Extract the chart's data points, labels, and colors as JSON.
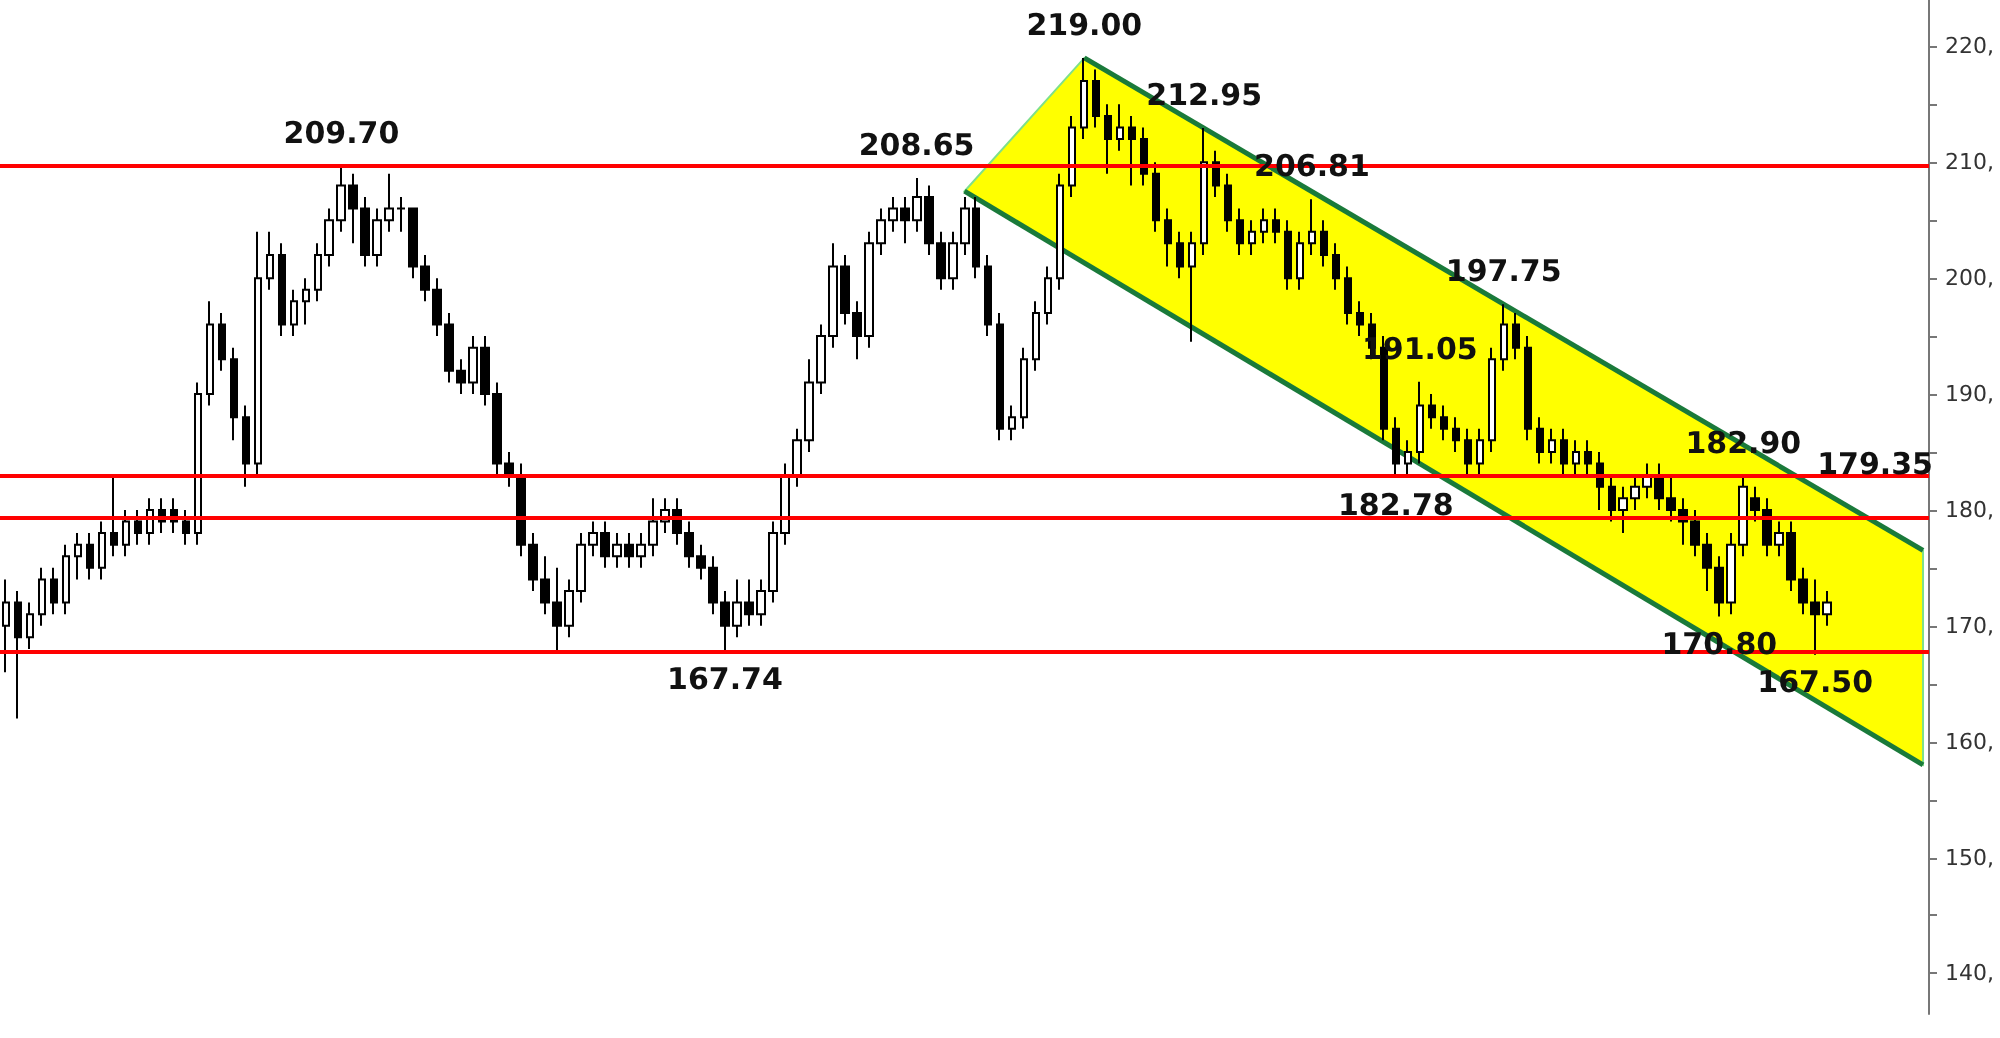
{
  "chart_data": {
    "type": "candlestick",
    "categories": [
      null,
      null,
      null,
      null,
      null,
      null,
      null,
      null,
      null,
      null,
      null,
      null,
      null,
      null,
      null,
      null,
      null,
      null,
      null,
      null,
      null,
      null,
      null,
      null,
      null,
      null,
      null,
      null,
      null,
      null,
      null,
      null,
      null,
      null,
      null,
      null,
      null,
      null,
      null,
      null,
      null,
      null,
      null,
      null,
      null,
      null,
      null,
      null,
      null,
      null,
      null,
      null,
      null,
      null,
      null,
      null,
      null,
      null,
      null,
      null,
      null,
      null,
      null,
      null,
      null,
      null,
      null,
      null,
      null,
      null,
      null,
      null,
      null,
      null,
      null,
      null,
      null,
      null,
      null,
      null,
      null,
      null,
      null,
      null,
      null,
      null,
      null,
      null,
      null,
      null,
      null,
      null,
      null,
      null,
      null,
      null,
      null,
      null,
      null,
      null,
      null,
      null,
      null,
      null,
      null,
      null,
      null,
      null,
      null,
      null,
      null,
      null,
      null,
      null,
      null,
      null,
      null,
      null,
      null,
      null,
      null,
      null,
      null,
      null,
      null,
      null,
      null,
      null,
      null,
      null,
      null,
      null,
      null,
      null,
      null,
      null,
      null,
      null,
      null,
      null,
      null,
      null,
      null,
      null,
      null,
      null,
      null,
      null,
      null,
      null,
      null,
      null,
      null,
      null,
      null,
      null,
      null,
      null,
      null,
      null,
      null
    ],
    "series": [
      {
        "color": "#000000",
        "ohlc": [
          [
            170,
            174,
            166,
            172
          ],
          [
            172,
            173,
            162,
            169
          ],
          [
            169,
            172,
            168,
            171
          ],
          [
            171,
            175,
            170,
            174
          ],
          [
            174,
            175,
            171,
            172
          ],
          [
            172,
            177,
            171,
            176
          ],
          [
            176,
            178,
            174,
            177
          ],
          [
            177,
            178,
            174,
            175
          ],
          [
            175,
            179,
            174,
            178
          ],
          [
            178,
            183,
            176,
            177
          ],
          [
            177,
            180,
            176,
            179
          ],
          [
            179,
            180,
            177,
            178
          ],
          [
            178,
            181,
            177,
            180
          ],
          [
            180,
            181,
            178,
            179
          ],
          [
            180,
            181,
            178,
            179
          ],
          [
            179,
            180,
            177,
            178
          ],
          [
            178,
            191,
            177,
            190
          ],
          [
            190,
            198,
            189,
            196
          ],
          [
            196,
            197,
            192,
            193
          ],
          [
            193,
            194,
            186,
            188
          ],
          [
            188,
            189,
            182,
            184
          ],
          [
            184,
            204,
            183,
            200
          ],
          [
            200,
            204,
            199,
            202
          ],
          [
            202,
            203,
            195,
            196
          ],
          [
            196,
            199,
            195,
            198
          ],
          [
            198,
            200,
            196,
            199
          ],
          [
            199,
            203,
            198,
            202
          ],
          [
            202,
            206,
            201,
            205
          ],
          [
            205,
            209.7,
            204,
            208
          ],
          [
            208,
            209,
            203,
            206
          ],
          [
            206,
            207,
            201,
            202
          ],
          [
            202,
            206,
            201,
            205
          ],
          [
            205,
            209,
            204,
            206
          ],
          [
            206,
            207,
            204,
            206
          ],
          [
            206,
            206,
            200,
            201
          ],
          [
            201,
            202,
            198,
            199
          ],
          [
            199,
            200,
            195,
            196
          ],
          [
            196,
            197,
            191,
            192
          ],
          [
            192,
            193,
            190,
            191
          ],
          [
            191,
            195,
            190,
            194
          ],
          [
            194,
            195,
            189,
            190
          ],
          [
            190,
            191,
            183,
            184
          ],
          [
            184,
            185,
            182,
            183
          ],
          [
            183,
            184,
            176,
            177
          ],
          [
            177,
            178,
            173,
            174
          ],
          [
            174,
            176,
            171,
            172
          ],
          [
            172,
            175,
            167.74,
            170
          ],
          [
            170,
            174,
            169,
            173
          ],
          [
            173,
            178,
            172,
            177
          ],
          [
            177,
            179,
            176,
            178
          ],
          [
            178,
            179,
            175,
            176
          ],
          [
            176,
            178,
            175,
            177
          ],
          [
            177,
            178,
            175,
            176
          ],
          [
            176,
            178,
            175,
            177
          ],
          [
            177,
            181,
            176,
            179
          ],
          [
            179,
            181,
            178,
            180
          ],
          [
            180,
            181,
            177,
            178
          ],
          [
            178,
            179,
            175,
            176
          ],
          [
            176,
            177,
            174,
            175
          ],
          [
            175,
            176,
            171,
            172
          ],
          [
            172,
            173,
            167.74,
            170
          ],
          [
            170,
            174,
            169,
            172
          ],
          [
            172,
            174,
            170,
            171
          ],
          [
            171,
            174,
            170,
            173
          ],
          [
            173,
            179,
            172,
            178
          ],
          [
            178,
            184,
            177,
            183
          ],
          [
            183,
            187,
            182,
            186
          ],
          [
            186,
            193,
            185,
            191
          ],
          [
            191,
            196,
            190,
            195
          ],
          [
            195,
            203,
            194,
            201
          ],
          [
            201,
            202,
            196,
            197
          ],
          [
            197,
            198,
            193,
            195
          ],
          [
            195,
            204,
            194,
            203
          ],
          [
            203,
            206,
            202,
            205
          ],
          [
            205,
            207,
            204,
            206
          ],
          [
            206,
            207,
            203,
            205
          ],
          [
            205,
            208.65,
            204,
            207
          ],
          [
            207,
            208,
            202,
            203
          ],
          [
            203,
            204,
            199,
            200
          ],
          [
            200,
            204,
            199,
            203
          ],
          [
            203,
            207,
            202,
            206
          ],
          [
            206,
            207,
            200,
            201
          ],
          [
            201,
            202,
            195,
            196
          ],
          [
            196,
            197,
            186,
            187
          ],
          [
            187,
            189,
            186,
            188
          ],
          [
            188,
            194,
            187,
            193
          ],
          [
            193,
            198,
            192,
            197
          ],
          [
            197,
            201,
            196,
            200
          ],
          [
            200,
            209,
            199,
            208
          ],
          [
            208,
            214,
            207,
            213
          ],
          [
            213,
            219,
            212,
            217
          ],
          [
            217,
            218,
            213,
            214
          ],
          [
            214,
            215,
            209,
            212
          ],
          [
            212,
            215,
            211,
            213
          ],
          [
            213,
            214,
            208,
            212
          ],
          [
            212,
            213,
            208,
            209
          ],
          [
            209,
            210,
            204,
            205
          ],
          [
            205,
            206,
            201,
            203
          ],
          [
            203,
            204,
            200,
            201
          ],
          [
            201,
            204,
            194.5,
            203
          ],
          [
            203,
            212.95,
            202,
            210
          ],
          [
            210,
            211,
            207,
            208
          ],
          [
            208,
            209,
            204,
            205
          ],
          [
            205,
            206,
            202,
            203
          ],
          [
            203,
            205,
            202,
            204
          ],
          [
            204,
            206,
            203,
            205
          ],
          [
            205,
            206,
            203,
            204
          ],
          [
            204,
            205,
            199,
            200
          ],
          [
            200,
            204,
            199,
            203
          ],
          [
            203,
            206.81,
            202,
            204
          ],
          [
            204,
            205,
            201,
            202
          ],
          [
            202,
            203,
            199,
            200
          ],
          [
            200,
            201,
            196,
            197
          ],
          [
            197,
            198,
            195,
            196
          ],
          [
            196,
            197,
            193,
            194
          ],
          [
            194,
            195,
            186,
            187
          ],
          [
            187,
            188,
            182.78,
            184
          ],
          [
            184,
            186,
            183,
            185
          ],
          [
            185,
            191.05,
            184,
            189
          ],
          [
            189,
            190,
            187,
            188
          ],
          [
            188,
            189,
            186,
            187
          ],
          [
            187,
            188,
            185,
            186
          ],
          [
            186,
            187,
            183,
            184
          ],
          [
            184,
            187,
            183,
            186
          ],
          [
            186,
            194,
            185,
            193
          ],
          [
            193,
            197.75,
            192,
            196
          ],
          [
            196,
            197,
            193,
            194
          ],
          [
            194,
            195,
            186,
            187
          ],
          [
            187,
            188,
            184,
            185
          ],
          [
            185,
            187,
            184,
            186
          ],
          [
            186,
            187,
            183,
            184
          ],
          [
            184,
            186,
            183,
            185
          ],
          [
            185,
            186,
            183,
            184
          ],
          [
            184,
            185,
            180,
            182
          ],
          [
            182,
            183,
            179,
            180
          ],
          [
            180,
            182,
            178,
            181
          ],
          [
            181,
            183,
            180,
            182
          ],
          [
            182,
            184,
            181,
            183
          ],
          [
            183,
            184,
            180,
            181
          ],
          [
            181,
            183,
            179,
            180
          ],
          [
            180,
            181,
            177,
            179
          ],
          [
            179,
            180,
            176,
            177
          ],
          [
            177,
            178,
            173,
            175
          ],
          [
            175,
            176,
            170.8,
            172
          ],
          [
            172,
            178,
            171,
            177
          ],
          [
            177,
            182.9,
            176,
            182
          ],
          [
            181,
            182,
            179,
            180
          ],
          [
            180,
            181,
            176,
            177
          ],
          [
            177,
            179,
            176,
            178
          ],
          [
            178,
            179,
            173,
            174
          ],
          [
            174,
            175,
            171,
            172
          ],
          [
            172,
            174,
            167.5,
            171
          ],
          [
            171,
            173,
            170,
            172
          ],
          null,
          null,
          null,
          null,
          null,
          null,
          null,
          null
        ]
      },
      {
        "type": "line",
        "color": "#1a7a3a",
        "values": [
          null,
          null,
          null,
          null,
          null,
          null,
          null,
          null,
          null,
          null,
          null,
          null,
          null,
          null,
          null,
          null,
          null,
          null,
          null,
          null,
          null,
          null,
          null,
          null,
          null,
          null,
          null,
          null,
          null,
          null,
          null,
          null,
          null,
          null,
          null,
          null,
          null,
          null,
          null,
          null,
          null,
          null,
          null,
          null,
          null,
          null,
          null,
          null,
          null,
          null,
          null,
          null,
          null,
          null,
          null,
          null,
          null,
          null,
          null,
          null,
          null,
          null,
          null,
          null,
          null,
          null,
          null,
          null,
          null,
          null,
          null,
          null,
          null,
          null,
          null,
          null,
          null,
          null,
          null,
          null,
          null,
          null,
          null,
          null,
          null,
          null,
          null,
          null,
          null,
          null,
          219,
          null,
          null,
          null,
          null,
          null,
          null,
          null,
          null,
          null,
          null,
          null,
          null,
          null,
          null,
          null,
          null,
          null,
          null,
          null,
          null,
          null,
          null,
          null,
          null,
          null,
          null,
          null,
          null,
          null,
          null,
          null,
          null,
          null,
          null,
          null,
          null,
          null,
          null,
          null,
          null,
          null,
          null,
          null,
          null,
          null,
          null,
          null,
          null,
          null,
          null,
          null,
          null,
          null,
          null,
          null,
          null,
          null,
          null,
          null,
          null,
          null,
          null,
          null,
          null,
          null,
          null,
          null,
          null,
          null,
          176.5
        ]
      },
      {
        "type": "line",
        "color": "#1a7a3a",
        "values": [
          null,
          null,
          null,
          null,
          null,
          null,
          null,
          null,
          null,
          null,
          null,
          null,
          null,
          null,
          null,
          null,
          null,
          null,
          null,
          null,
          null,
          null,
          null,
          null,
          null,
          null,
          null,
          null,
          null,
          null,
          null,
          null,
          null,
          null,
          null,
          null,
          null,
          null,
          null,
          null,
          null,
          null,
          null,
          null,
          null,
          null,
          null,
          null,
          null,
          null,
          null,
          null,
          null,
          null,
          null,
          null,
          null,
          null,
          null,
          null,
          null,
          null,
          null,
          null,
          null,
          null,
          null,
          null,
          null,
          null,
          null,
          null,
          null,
          null,
          null,
          null,
          null,
          null,
          null,
          null,
          207.5,
          null,
          null,
          null,
          null,
          null,
          null,
          null,
          null,
          null,
          null,
          null,
          null,
          null,
          null,
          null,
          null,
          null,
          null,
          null,
          null,
          null,
          null,
          null,
          null,
          null,
          null,
          null,
          null,
          null,
          null,
          null,
          null,
          null,
          null,
          null,
          null,
          null,
          null,
          null,
          null,
          null,
          null,
          null,
          null,
          null,
          null,
          null,
          null,
          null,
          null,
          null,
          null,
          null,
          null,
          null,
          null,
          null,
          null,
          null,
          null,
          null,
          null,
          null,
          null,
          null,
          null,
          null,
          null,
          null,
          null,
          null,
          null,
          null,
          null,
          null,
          null,
          null,
          null,
          null,
          158
        ]
      }
    ],
    "ylim": [
      136.5,
      224
    ],
    "yticks": [
      {
        "value": 140,
        "label": "140,"
      },
      {
        "value": 145,
        "label": null
      },
      {
        "value": 150,
        "label": "150,"
      },
      {
        "value": 155,
        "label": null
      },
      {
        "value": 160,
        "label": "160,"
      },
      {
        "value": 165,
        "label": null
      },
      {
        "value": 170,
        "label": "170,"
      },
      {
        "value": 175,
        "label": null
      },
      {
        "value": 180,
        "label": "180,"
      },
      {
        "value": 185,
        "label": null
      },
      {
        "value": 190,
        "label": "190,"
      },
      {
        "value": 195,
        "label": null
      },
      {
        "value": 200,
        "label": "200,"
      },
      {
        "value": 205,
        "label": null
      },
      {
        "value": 210,
        "label": "210,"
      },
      {
        "value": 215,
        "label": null
      },
      {
        "value": 220,
        "label": "220,"
      }
    ],
    "tick_labels": "y",
    "ref_lines": [
      {
        "axis": "y",
        "value": 209.7,
        "color": "#ff0000"
      },
      {
        "axis": "y",
        "value": 167.74,
        "color": "#ff0000"
      },
      {
        "axis": "y",
        "value": 182.9,
        "color": "#ff0000"
      },
      {
        "axis": "y",
        "value": 179.35,
        "color": "#ff0000"
      }
    ],
    "annotations": [
      {
        "text": "219.00",
        "y": 219
      },
      {
        "text": "209.70",
        "y": 209.7
      },
      {
        "text": "208.65",
        "y": 208.65
      },
      {
        "text": "212.95",
        "y": 212.95
      },
      {
        "text": "206.81",
        "y": 206.81
      },
      {
        "text": "197.75",
        "y": 197.75
      },
      {
        "text": "191.05",
        "y": 191.05
      },
      {
        "text": "182.78",
        "y": 182.78
      },
      {
        "text": "182.90",
        "y": 182.9
      },
      {
        "text": "179.35",
        "y": 179.35
      },
      {
        "text": "170.80",
        "y": 170.8
      },
      {
        "text": "167.74",
        "y": 167.74
      },
      {
        "text": "167.50",
        "y": 167.5
      }
    ]
  }
}
